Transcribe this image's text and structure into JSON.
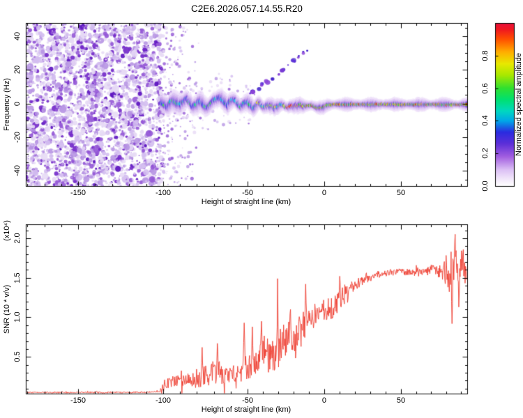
{
  "title": "C2E6.2026.057.14.55.R20",
  "colors": {
    "background": "#ffffff",
    "axis": "#000000",
    "snr_line": "#ee3b2e"
  },
  "colorbar": {
    "label": "Normalized spectral amplitude",
    "tick_labels": [
      "0.0",
      "0.2",
      "0.4",
      "0.6",
      "0.8"
    ],
    "tick_values": [
      0,
      0.2,
      0.4,
      0.6,
      0.8
    ],
    "range": [
      0,
      1
    ],
    "stops": [
      [
        0.0,
        "#ffffff"
      ],
      [
        0.04,
        "#f3e9fb"
      ],
      [
        0.1,
        "#dcc0f5"
      ],
      [
        0.18,
        "#a25ee0"
      ],
      [
        0.26,
        "#5c2fd8"
      ],
      [
        0.33,
        "#2b2be0"
      ],
      [
        0.4,
        "#00a8e8"
      ],
      [
        0.46,
        "#00d8c0"
      ],
      [
        0.53,
        "#00e070"
      ],
      [
        0.6,
        "#30e030"
      ],
      [
        0.68,
        "#a8e800"
      ],
      [
        0.75,
        "#e8e800"
      ],
      [
        0.82,
        "#ffb000"
      ],
      [
        0.9,
        "#ff5000"
      ],
      [
        0.96,
        "#f01820"
      ],
      [
        1.0,
        "#e8103c"
      ]
    ]
  },
  "chart_data": [
    {
      "type": "heatmap",
      "title": "",
      "xlabel": "Height of straight line (km)",
      "ylabel": "Frequency (Hz)",
      "xlim": [
        -181,
        94
      ],
      "ylim": [
        -48.9,
        47.7
      ],
      "x_tick_labels": [
        "-150",
        "-100",
        "-50",
        "0",
        "50"
      ],
      "x_tick_values": [
        -150,
        -100,
        -50,
        0,
        50
      ],
      "x_minor_step": 10,
      "y_tick_labels": [
        "40",
        "20",
        "0",
        "-20",
        "-40"
      ],
      "y_tick_values": [
        40,
        20,
        0,
        -20,
        -40
      ],
      "y_minor_step": 5,
      "x_axis_km_anchors": [
        -181,
        -150,
        -100,
        -50,
        0,
        50,
        94
      ],
      "x_axis_norm_positions": [
        0,
        0.1185,
        0.3112,
        0.5024,
        0.6761,
        0.8499,
        1
      ],
      "grid": false,
      "noise_region": {
        "x_range": [
          -181,
          -100
        ],
        "character": "dense purple speckle noise covering all frequencies",
        "fade_out_until": -78,
        "speckle_colors": [
          [
            "#e7daf5",
            0.3
          ],
          [
            "#d3bdf0",
            0.26
          ],
          [
            "#b795e3",
            0.2
          ],
          [
            "#9357d6",
            0.14
          ],
          [
            "#7228c9",
            0.07
          ],
          [
            "#5a10bf",
            0.03
          ]
        ]
      },
      "signal_band": {
        "centerline_km_hz": [
          [
            -100,
            0
          ],
          [
            -97,
            -2
          ],
          [
            -94,
            2
          ],
          [
            -90,
            -1
          ],
          [
            -86,
            3
          ],
          [
            -82,
            -2
          ],
          [
            -78,
            1.5
          ],
          [
            -74,
            -2.5
          ],
          [
            -70,
            2
          ],
          [
            -66,
            3.5
          ],
          [
            -62,
            -1
          ],
          [
            -58,
            2.5
          ],
          [
            -54,
            -2
          ],
          [
            -50,
            1
          ],
          [
            -46,
            -3
          ],
          [
            -43,
            0.5
          ],
          [
            -40,
            -2
          ],
          [
            -36,
            -1
          ],
          [
            -32,
            -2.5
          ],
          [
            -28,
            -1
          ],
          [
            -24,
            -2
          ],
          [
            -20,
            -1.5
          ],
          [
            -16,
            -1
          ],
          [
            -12,
            -1.5
          ],
          [
            -8,
            -1
          ],
          [
            -4,
            -2.5
          ],
          [
            -1,
            -2.5
          ],
          [
            2,
            -1
          ],
          [
            6,
            -0.6
          ],
          [
            94,
            -0.6
          ]
        ],
        "halo_halfwidth_hz": [
          [
            -100,
            6.6
          ],
          [
            -60,
            5.4
          ],
          [
            -30,
            4.3
          ],
          [
            0,
            3.7
          ],
          [
            94,
            3.5
          ]
        ],
        "intensity_by_height": [
          [
            -100,
            0.45
          ],
          [
            -60,
            0.55
          ],
          [
            -40,
            0.65
          ],
          [
            -25,
            0.75
          ],
          [
            -15,
            0.9
          ],
          [
            0,
            0.95
          ],
          [
            94,
            0.95
          ]
        ],
        "layer_colors": {
          "halo": "#ead9f8",
          "outer": "#c9a7ee",
          "mid": "#8b45d8",
          "blue": "#3922dd",
          "core_low": [
            "#00cfe0",
            "#00e0a0",
            "#20dd30",
            "#2a50e8"
          ],
          "core_mid": [
            "#20dd30",
            "#9fe000",
            "#e8e800",
            "#00cfe0"
          ],
          "core_high": [
            "#e8e800",
            "#ff9000",
            "#20dd30",
            "#f21010"
          ],
          "core_green": "#28dd28",
          "core_orange": "#ff9000",
          "core_red": "#f21010",
          "core_yellow": "#e8e800"
        }
      },
      "streak": {
        "character": "faint diagonal trace of purple blobs rising to upper right",
        "points_km_hz": [
          [
            -48,
            6
          ],
          [
            -46,
            7.5
          ],
          [
            -43,
            9
          ],
          [
            -40,
            11
          ],
          [
            -37,
            13
          ],
          [
            -34,
            15
          ],
          [
            -30,
            17.5
          ],
          [
            -27,
            20
          ],
          [
            -24,
            22.5
          ],
          [
            -20,
            25
          ],
          [
            -17,
            27.5
          ],
          [
            -13,
            30
          ],
          [
            -11,
            32
          ]
        ],
        "colors": [
          "#8b45d8",
          "#5c2fd8",
          "#3a18c8"
        ]
      }
    },
    {
      "type": "line",
      "title": "",
      "xlabel": "Height of straight line (km)",
      "ylabel": "SNR (10 * v/v)",
      "y_multiplier_label": "(x10⁴)",
      "line_color": "#ee3b2e",
      "xlim": [
        -181,
        94
      ],
      "ylim": [
        0.035,
        2.176
      ],
      "x_tick_labels": [
        "-150",
        "-100",
        "-50",
        "0",
        "50"
      ],
      "x_tick_values": [
        -150,
        -100,
        -50,
        0,
        50
      ],
      "x_minor_step": 10,
      "y_tick_labels": [
        "2.0",
        "1.5",
        "1.0",
        "0.5"
      ],
      "y_tick_values": [
        2.0,
        1.5,
        1.0,
        0.5
      ],
      "y_minor_step": 0.1,
      "grid": false,
      "envelope_x_mean_amp": [
        [
          -181,
          0.05,
          0.012
        ],
        [
          -120,
          0.05,
          0.012
        ],
        [
          -102,
          0.055,
          0.015
        ],
        [
          -100,
          0.17,
          0.12
        ],
        [
          -95,
          0.18,
          0.12
        ],
        [
          -90,
          0.22,
          0.13
        ],
        [
          -85,
          0.2,
          0.12
        ],
        [
          -80,
          0.22,
          0.14
        ],
        [
          -76,
          0.26,
          0.18
        ],
        [
          -72,
          0.28,
          0.2
        ],
        [
          -68,
          0.3,
          0.22
        ],
        [
          -64,
          0.26,
          0.15
        ],
        [
          -60,
          0.3,
          0.16
        ],
        [
          -56,
          0.33,
          0.18
        ],
        [
          -52,
          0.38,
          0.25
        ],
        [
          -48,
          0.35,
          0.2
        ],
        [
          -44,
          0.42,
          0.25
        ],
        [
          -40,
          0.5,
          0.3
        ],
        [
          -36,
          0.55,
          0.32
        ],
        [
          -32,
          0.5,
          0.3
        ],
        [
          -28,
          0.62,
          0.33
        ],
        [
          -24,
          0.7,
          0.32
        ],
        [
          -20,
          0.72,
          0.3
        ],
        [
          -16,
          0.85,
          0.28
        ],
        [
          -12,
          0.95,
          0.25
        ],
        [
          -8,
          1.0,
          0.18
        ],
        [
          -4,
          1.02,
          0.15
        ],
        [
          0,
          1.08,
          0.16
        ],
        [
          4,
          1.13,
          0.18
        ],
        [
          8,
          1.2,
          0.22
        ],
        [
          12,
          1.28,
          0.18
        ],
        [
          16,
          1.32,
          0.14
        ],
        [
          20,
          1.4,
          0.1
        ],
        [
          24,
          1.45,
          0.08
        ],
        [
          28,
          1.5,
          0.07
        ],
        [
          34,
          1.53,
          0.06
        ],
        [
          40,
          1.55,
          0.05
        ],
        [
          48,
          1.58,
          0.05
        ],
        [
          56,
          1.56,
          0.06
        ],
        [
          64,
          1.58,
          0.07
        ],
        [
          72,
          1.6,
          0.09
        ],
        [
          78,
          1.58,
          0.12
        ],
        [
          82,
          1.55,
          0.25
        ],
        [
          85,
          1.65,
          0.4
        ],
        [
          88,
          1.6,
          0.3
        ],
        [
          91,
          1.65,
          0.25
        ],
        [
          93.5,
          1.55,
          0.15
        ]
      ],
      "spikes_x_value": [
        [
          -77,
          0.62
        ],
        [
          -68,
          0.67
        ],
        [
          -52,
          0.93
        ],
        [
          -47,
          0.88
        ],
        [
          -41,
          0.95
        ],
        [
          -30.5,
          1.49
        ],
        [
          -22,
          1.1
        ],
        [
          -12,
          1.42
        ],
        [
          10,
          1.52
        ],
        [
          84,
          0.92
        ],
        [
          86,
          2.05
        ],
        [
          88.5,
          1.13
        ]
      ]
    }
  ]
}
